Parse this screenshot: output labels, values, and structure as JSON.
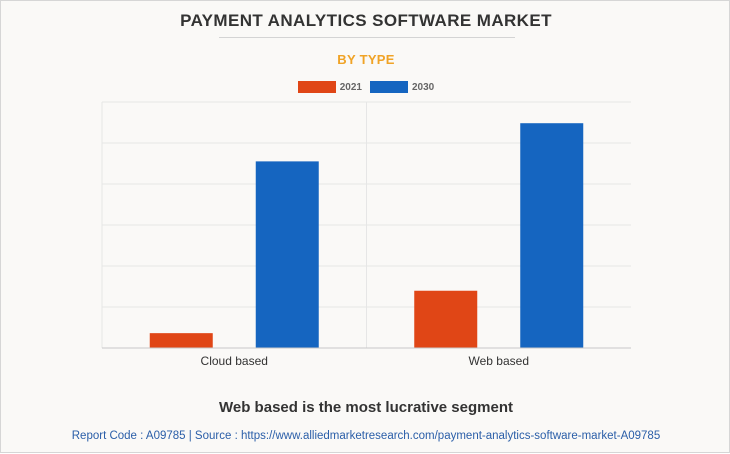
{
  "title": "PAYMENT ANALYTICS SOFTWARE MARKET",
  "subtitle": "BY TYPE",
  "colors": {
    "subtitle": "#f0a326",
    "series_2021": "#e04616",
    "series_2030": "#1565c0",
    "source_link": "#2a5ea8"
  },
  "chart_data": {
    "type": "bar",
    "categories": [
      "Cloud based",
      "Web based"
    ],
    "series": [
      {
        "name": "2021",
        "values": [
          0.7,
          2.7
        ],
        "color": "#e04616"
      },
      {
        "name": "2030",
        "values": [
          8.8,
          10.6
        ],
        "color": "#1565c0"
      }
    ],
    "ylim": [
      0,
      11.6
    ],
    "grid": true,
    "legend_position": "top-center",
    "xlabel": "",
    "ylabel": ""
  },
  "footer": {
    "heading": "Web based is the most lucrative segment",
    "source": "Report Code : A09785  |  Source : https://www.alliedmarketresearch.com/payment-analytics-software-market-A09785"
  }
}
